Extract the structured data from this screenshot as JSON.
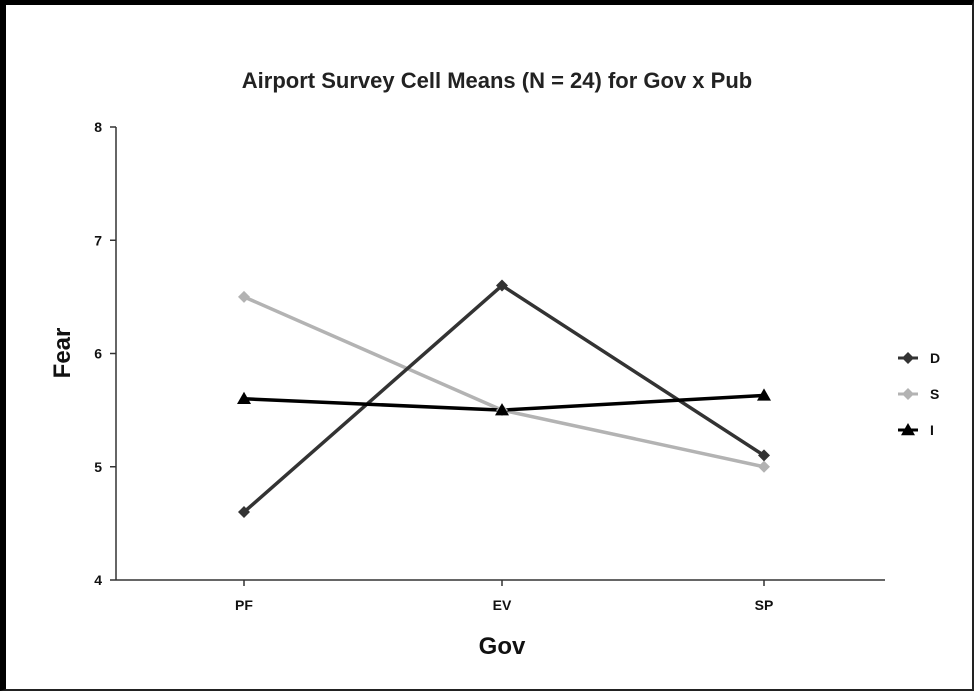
{
  "chart_data": {
    "type": "line",
    "title": "Airport Survey Cell Means (N = 24) for Gov x Pub",
    "xlabel": "Gov",
    "ylabel": "Fear",
    "categories": [
      "PF",
      "EV",
      "SP"
    ],
    "ylim": [
      4,
      8
    ],
    "yticks": [
      4,
      5,
      6,
      7,
      8
    ],
    "grid": false,
    "legend_position": "right",
    "series": [
      {
        "name": "D",
        "values": [
          4.6,
          6.6,
          5.1
        ],
        "color": "#333333",
        "marker": "diamond"
      },
      {
        "name": "S",
        "values": [
          6.5,
          5.5,
          5.0
        ],
        "color": "#b3b3b3",
        "marker": "diamond"
      },
      {
        "name": "I",
        "values": [
          5.6,
          5.5,
          5.63
        ],
        "color": "#000000",
        "marker": "triangle"
      }
    ]
  }
}
